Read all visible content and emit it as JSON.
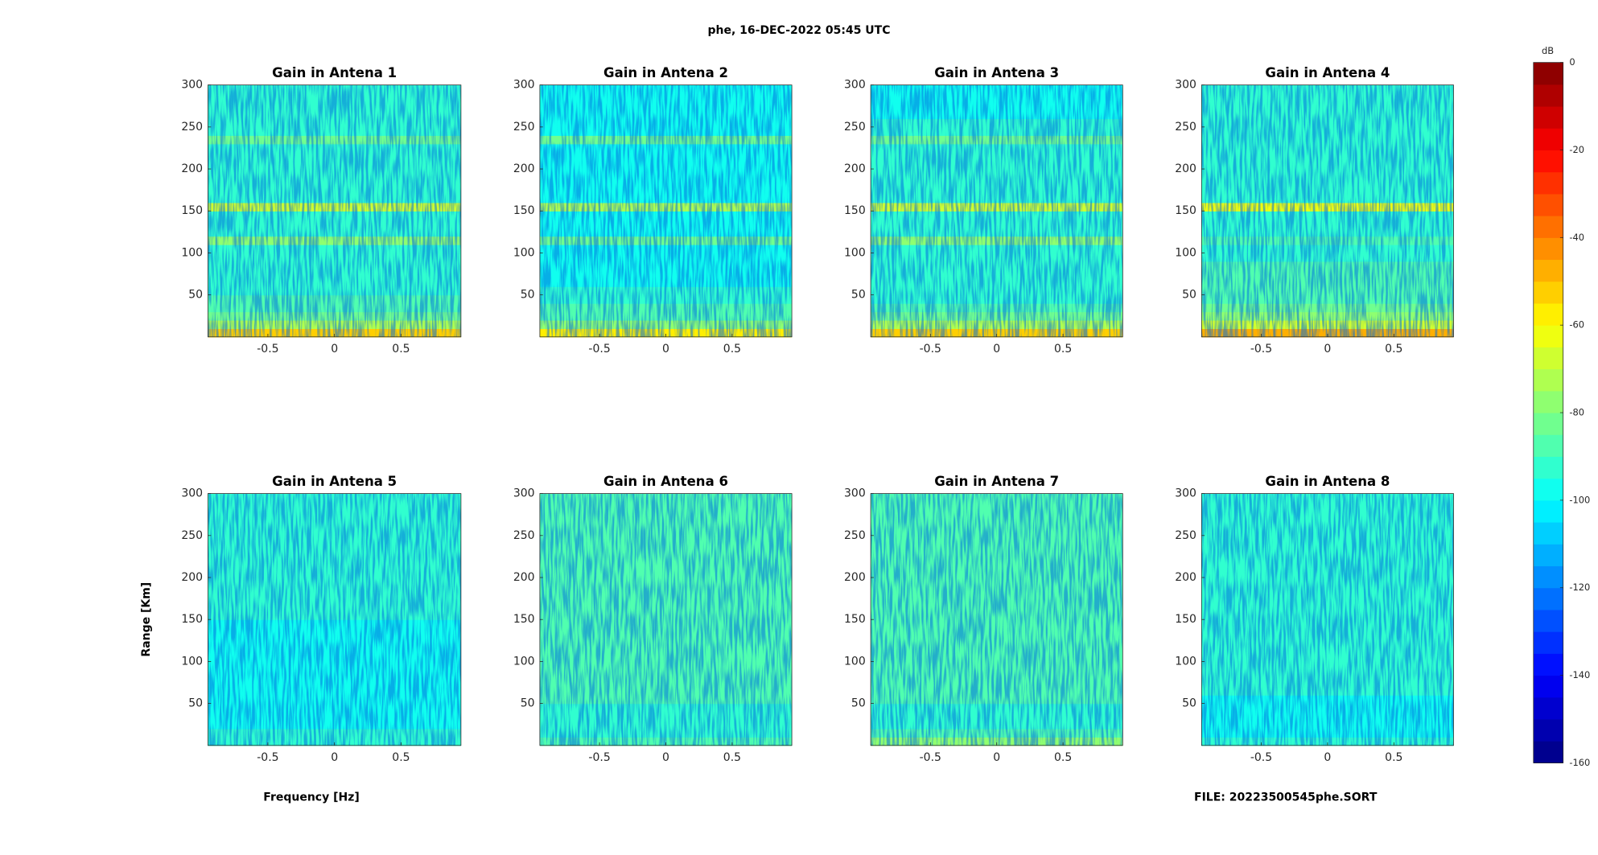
{
  "figure": {
    "title": "phe, 16-DEC-2022 05:45 UTC",
    "xlabel": "Frequency [Hz]",
    "ylabel": "Range [Km]",
    "footer": "FILE: 20223500545phe.SORT",
    "colorbar": {
      "label": "dB",
      "clim": [
        -160,
        0
      ],
      "ticks": [
        0,
        -20,
        -40,
        -60,
        -80,
        -100,
        -120,
        -140,
        -160
      ],
      "levels": 32,
      "colormap": "jet"
    }
  },
  "chart_data": [
    {
      "type": "heatmap",
      "title": "Gain in Antena 1",
      "xlim": [
        -0.95,
        0.95
      ],
      "xticks": [
        -0.5,
        0,
        0.5
      ],
      "ylim": [
        0,
        300
      ],
      "yticks": [
        50,
        100,
        150,
        200,
        250,
        300
      ],
      "ybins": [
        0,
        10,
        20,
        30,
        40,
        50,
        60,
        70,
        80,
        90,
        100,
        110,
        120,
        130,
        140,
        150,
        160,
        170,
        180,
        190,
        200,
        210,
        220,
        230,
        240,
        250,
        260,
        270,
        280,
        290,
        300
      ],
      "values": [
        -52,
        -72,
        -82,
        -86,
        -90,
        -92,
        -93,
        -94,
        -94,
        -94,
        -94,
        -80,
        -94,
        -94,
        -94,
        -68,
        -94,
        -94,
        -94,
        -94,
        -94,
        -94,
        -94,
        -82,
        -94,
        -94,
        -95,
        -95,
        -95,
        -95
      ]
    },
    {
      "type": "heatmap",
      "title": "Gain in Antena 2",
      "xlim": [
        -0.95,
        0.95
      ],
      "xticks": [
        -0.5,
        0,
        0.5
      ],
      "ylim": [
        0,
        300
      ],
      "yticks": [
        50,
        100,
        150,
        200,
        250,
        300
      ],
      "ybins": [
        0,
        10,
        20,
        30,
        40,
        50,
        60,
        70,
        80,
        90,
        100,
        110,
        120,
        130,
        140,
        150,
        160,
        170,
        180,
        190,
        200,
        210,
        220,
        230,
        240,
        250,
        260,
        270,
        280,
        290,
        300
      ],
      "values": [
        -56,
        -76,
        -86,
        -90,
        -93,
        -95,
        -96,
        -97,
        -97,
        -97,
        -97,
        -82,
        -97,
        -97,
        -97,
        -72,
        -97,
        -97,
        -97,
        -97,
        -97,
        -97,
        -97,
        -85,
        -97,
        -97,
        -98,
        -98,
        -98,
        -98
      ]
    },
    {
      "type": "heatmap",
      "title": "Gain in Antena 3",
      "xlim": [
        -0.95,
        0.95
      ],
      "xticks": [
        -0.5,
        0,
        0.5
      ],
      "ylim": [
        0,
        300
      ],
      "yticks": [
        50,
        100,
        150,
        200,
        250,
        300
      ],
      "ybins": [
        0,
        10,
        20,
        30,
        40,
        50,
        60,
        70,
        80,
        90,
        100,
        110,
        120,
        130,
        140,
        150,
        160,
        170,
        180,
        190,
        200,
        210,
        220,
        230,
        240,
        250,
        260,
        270,
        280,
        290,
        300
      ],
      "values": [
        -52,
        -72,
        -82,
        -87,
        -91,
        -93,
        -94,
        -95,
        -95,
        -95,
        -95,
        -80,
        -95,
        -95,
        -95,
        -70,
        -95,
        -95,
        -95,
        -95,
        -95,
        -95,
        -95,
        -83,
        -95,
        -95,
        -96,
        -96,
        -96,
        -96
      ]
    },
    {
      "type": "heatmap",
      "title": "Gain in Antena 4",
      "xlim": [
        -0.95,
        0.95
      ],
      "xticks": [
        -0.5,
        0,
        0.5
      ],
      "ylim": [
        0,
        300
      ],
      "yticks": [
        50,
        100,
        150,
        200,
        250,
        300
      ],
      "ybins": [
        0,
        10,
        20,
        30,
        40,
        50,
        60,
        70,
        80,
        90,
        100,
        110,
        120,
        130,
        140,
        150,
        160,
        170,
        180,
        190,
        200,
        210,
        220,
        230,
        240,
        250,
        260,
        270,
        280,
        290,
        300
      ],
      "values": [
        -50,
        -70,
        -80,
        -84,
        -86,
        -88,
        -89,
        -90,
        -90,
        -91,
        -91,
        -88,
        -91,
        -92,
        -92,
        -62,
        -92,
        -93,
        -93,
        -93,
        -93,
        -93,
        -93,
        -93,
        -94,
        -94,
        -94,
        -94,
        -94,
        -94
      ]
    },
    {
      "type": "heatmap",
      "title": "Gain in Antena 5",
      "xlim": [
        -0.95,
        0.95
      ],
      "xticks": [
        -0.5,
        0,
        0.5
      ],
      "ylim": [
        0,
        300
      ],
      "yticks": [
        50,
        100,
        150,
        200,
        250,
        300
      ],
      "ybins": [
        0,
        10,
        20,
        30,
        40,
        50,
        60,
        70,
        80,
        90,
        100,
        110,
        120,
        130,
        140,
        150,
        160,
        170,
        180,
        190,
        200,
        210,
        220,
        230,
        240,
        250,
        260,
        270,
        280,
        290,
        300
      ],
      "values": [
        -92,
        -95,
        -97,
        -97,
        -96,
        -96,
        -96,
        -96,
        -96,
        -96,
        -96,
        -96,
        -96,
        -96,
        -96,
        -95,
        -95,
        -95,
        -95,
        -95,
        -95,
        -95,
        -95,
        -95,
        -95,
        -95,
        -95,
        -95,
        -95,
        -95
      ]
    },
    {
      "type": "heatmap",
      "title": "Gain in Antena 6",
      "xlim": [
        -0.95,
        0.95
      ],
      "xticks": [
        -0.5,
        0,
        0.5
      ],
      "ylim": [
        0,
        300
      ],
      "yticks": [
        50,
        100,
        150,
        200,
        250,
        300
      ],
      "ybins": [
        0,
        10,
        20,
        30,
        40,
        50,
        60,
        70,
        80,
        90,
        100,
        110,
        120,
        130,
        140,
        150,
        160,
        170,
        180,
        190,
        200,
        210,
        220,
        230,
        240,
        250,
        260,
        270,
        280,
        290,
        300
      ],
      "values": [
        -88,
        -92,
        -93,
        -92,
        -91,
        -90,
        -90,
        -89,
        -89,
        -89,
        -89,
        -89,
        -89,
        -88,
        -88,
        -88,
        -88,
        -88,
        -88,
        -88,
        -88,
        -88,
        -88,
        -88,
        -88,
        -87,
        -87,
        -87,
        -87,
        -87
      ]
    },
    {
      "type": "heatmap",
      "title": "Gain in Antena 7",
      "xlim": [
        -0.95,
        0.95
      ],
      "xticks": [
        -0.5,
        0,
        0.5
      ],
      "ylim": [
        0,
        300
      ],
      "yticks": [
        50,
        100,
        150,
        200,
        250,
        300
      ],
      "ybins": [
        0,
        10,
        20,
        30,
        40,
        50,
        60,
        70,
        80,
        90,
        100,
        110,
        120,
        130,
        140,
        150,
        160,
        170,
        180,
        190,
        200,
        210,
        220,
        230,
        240,
        250,
        260,
        270,
        280,
        290,
        300
      ],
      "values": [
        -80,
        -90,
        -92,
        -92,
        -91,
        -90,
        -90,
        -89,
        -89,
        -89,
        -88,
        -88,
        -88,
        -88,
        -88,
        -87,
        -87,
        -87,
        -87,
        -87,
        -87,
        -87,
        -87,
        -87,
        -87,
        -87,
        -87,
        -87,
        -87,
        -87
      ]
    },
    {
      "type": "heatmap",
      "title": "Gain in Antena 8",
      "xlim": [
        -0.95,
        0.95
      ],
      "xticks": [
        -0.5,
        0,
        0.5
      ],
      "ylim": [
        0,
        300
      ],
      "yticks": [
        50,
        100,
        150,
        200,
        250,
        300
      ],
      "ybins": [
        0,
        10,
        20,
        30,
        40,
        50,
        60,
        70,
        80,
        90,
        100,
        110,
        120,
        130,
        140,
        150,
        160,
        170,
        180,
        190,
        200,
        210,
        220,
        230,
        240,
        250,
        260,
        270,
        280,
        290,
        300
      ],
      "values": [
        -93,
        -96,
        -97,
        -97,
        -96,
        -96,
        -95,
        -95,
        -95,
        -95,
        -95,
        -95,
        -95,
        -95,
        -95,
        -94,
        -94,
        -94,
        -94,
        -94,
        -94,
        -94,
        -94,
        -94,
        -94,
        -94,
        -94,
        -94,
        -94,
        -94
      ]
    }
  ]
}
